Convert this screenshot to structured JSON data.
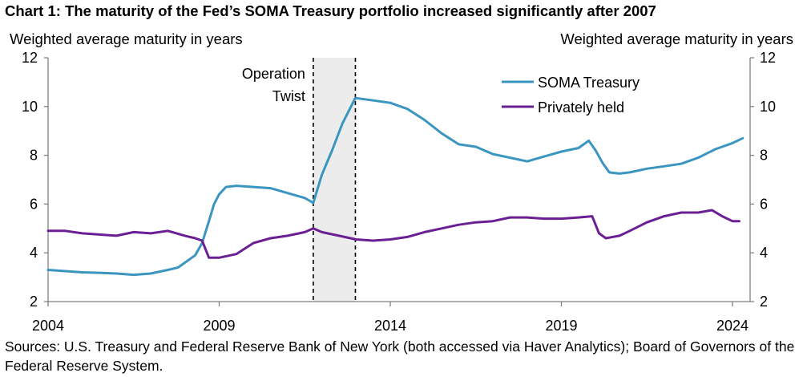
{
  "chart_data": {
    "type": "line",
    "title": "Chart 1: The maturity of the Fed’s SOMA Treasury portfolio increased significantly after 2007",
    "ylabel_left": "Weighted average maturity in years",
    "ylabel_right": "Weighted average maturity in years",
    "xlabel": "",
    "xlim": [
      2004,
      2024.5
    ],
    "ylim": [
      2,
      12
    ],
    "x_ticks": [
      2004,
      2009,
      2014,
      2019,
      2024
    ],
    "x_tick_labels": [
      "2004",
      "2009",
      "2014",
      "2019",
      "2024"
    ],
    "y_ticks": [
      2,
      4,
      6,
      8,
      10,
      12
    ],
    "y_tick_labels": [
      "2",
      "4",
      "6",
      "8",
      "10",
      "12"
    ],
    "grid": false,
    "legend_position": "top-right",
    "annotation": {
      "label_lines": [
        "Operation",
        "Twist"
      ],
      "x_start": 2011.75,
      "x_end": 2012.98
    },
    "series": [
      {
        "name": "SOMA Treasury",
        "color": "#3a96c0",
        "points": [
          [
            2004.0,
            3.3
          ],
          [
            2004.5,
            3.25
          ],
          [
            2005.0,
            3.2
          ],
          [
            2005.5,
            3.18
          ],
          [
            2006.0,
            3.15
          ],
          [
            2006.5,
            3.1
          ],
          [
            2007.0,
            3.15
          ],
          [
            2007.5,
            3.3
          ],
          [
            2007.8,
            3.4
          ],
          [
            2008.0,
            3.6
          ],
          [
            2008.3,
            3.9
          ],
          [
            2008.5,
            4.4
          ],
          [
            2008.7,
            5.3
          ],
          [
            2008.85,
            6.0
          ],
          [
            2009.0,
            6.4
          ],
          [
            2009.2,
            6.7
          ],
          [
            2009.5,
            6.75
          ],
          [
            2010.0,
            6.7
          ],
          [
            2010.5,
            6.65
          ],
          [
            2011.0,
            6.45
          ],
          [
            2011.5,
            6.25
          ],
          [
            2011.75,
            6.05
          ],
          [
            2012.0,
            7.2
          ],
          [
            2012.3,
            8.2
          ],
          [
            2012.6,
            9.3
          ],
          [
            2012.98,
            10.35
          ],
          [
            2013.5,
            10.25
          ],
          [
            2014.0,
            10.15
          ],
          [
            2014.5,
            9.9
          ],
          [
            2015.0,
            9.45
          ],
          [
            2015.5,
            8.9
          ],
          [
            2016.0,
            8.45
          ],
          [
            2016.5,
            8.35
          ],
          [
            2017.0,
            8.05
          ],
          [
            2017.5,
            7.9
          ],
          [
            2018.0,
            7.75
          ],
          [
            2018.5,
            7.95
          ],
          [
            2019.0,
            8.15
          ],
          [
            2019.5,
            8.3
          ],
          [
            2019.8,
            8.6
          ],
          [
            2020.0,
            8.2
          ],
          [
            2020.2,
            7.7
          ],
          [
            2020.4,
            7.3
          ],
          [
            2020.7,
            7.25
          ],
          [
            2021.0,
            7.3
          ],
          [
            2021.5,
            7.45
          ],
          [
            2022.0,
            7.55
          ],
          [
            2022.5,
            7.65
          ],
          [
            2023.0,
            7.9
          ],
          [
            2023.5,
            8.25
          ],
          [
            2024.0,
            8.5
          ],
          [
            2024.3,
            8.7
          ]
        ]
      },
      {
        "name": "Privately held",
        "color": "#6a1f94",
        "points": [
          [
            2004.0,
            4.9
          ],
          [
            2004.5,
            4.9
          ],
          [
            2005.0,
            4.8
          ],
          [
            2005.5,
            4.75
          ],
          [
            2006.0,
            4.7
          ],
          [
            2006.5,
            4.85
          ],
          [
            2007.0,
            4.8
          ],
          [
            2007.5,
            4.9
          ],
          [
            2008.0,
            4.7
          ],
          [
            2008.3,
            4.6
          ],
          [
            2008.5,
            4.5
          ],
          [
            2008.7,
            3.8
          ],
          [
            2009.0,
            3.8
          ],
          [
            2009.5,
            3.95
          ],
          [
            2010.0,
            4.4
          ],
          [
            2010.5,
            4.6
          ],
          [
            2011.0,
            4.7
          ],
          [
            2011.5,
            4.85
          ],
          [
            2011.75,
            5.0
          ],
          [
            2012.0,
            4.85
          ],
          [
            2012.5,
            4.7
          ],
          [
            2013.0,
            4.55
          ],
          [
            2013.5,
            4.5
          ],
          [
            2014.0,
            4.55
          ],
          [
            2014.5,
            4.65
          ],
          [
            2015.0,
            4.85
          ],
          [
            2015.5,
            5.0
          ],
          [
            2016.0,
            5.15
          ],
          [
            2016.5,
            5.25
          ],
          [
            2017.0,
            5.3
          ],
          [
            2017.5,
            5.45
          ],
          [
            2018.0,
            5.45
          ],
          [
            2018.5,
            5.4
          ],
          [
            2019.0,
            5.4
          ],
          [
            2019.5,
            5.45
          ],
          [
            2019.9,
            5.5
          ],
          [
            2020.1,
            4.8
          ],
          [
            2020.3,
            4.6
          ],
          [
            2020.7,
            4.7
          ],
          [
            2021.0,
            4.9
          ],
          [
            2021.5,
            5.25
          ],
          [
            2022.0,
            5.5
          ],
          [
            2022.5,
            5.65
          ],
          [
            2023.0,
            5.65
          ],
          [
            2023.4,
            5.75
          ],
          [
            2023.7,
            5.5
          ],
          [
            2024.0,
            5.3
          ],
          [
            2024.2,
            5.3
          ]
        ]
      }
    ]
  },
  "source_text": "Sources: U.S. Treasury and Federal Reserve Bank of New York (both accessed via Haver Analytics); Board of Governors of the Federal Reserve System."
}
